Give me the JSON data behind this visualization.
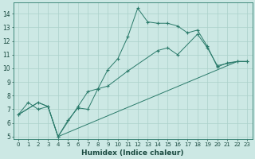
{
  "xlabel": "Humidex (Indice chaleur)",
  "bg_color": "#cce8e4",
  "grid_color": "#aad0ca",
  "line_color": "#2a7a6a",
  "xlim": [
    -0.5,
    23.5
  ],
  "ylim": [
    4.8,
    14.8
  ],
  "xtick_labels": [
    "0",
    "1",
    "2",
    "3",
    "4",
    "5",
    "6",
    "7",
    "8",
    "9",
    "10",
    "11",
    "12",
    "13",
    "14",
    "15",
    "16",
    "17",
    "18",
    "19",
    "20",
    "21",
    "22",
    "23"
  ],
  "xtick_vals": [
    0,
    1,
    2,
    3,
    4,
    5,
    6,
    7,
    8,
    9,
    10,
    11,
    12,
    13,
    14,
    15,
    16,
    17,
    18,
    19,
    20,
    21,
    22,
    23
  ],
  "ytick_vals": [
    5,
    6,
    7,
    8,
    9,
    10,
    11,
    12,
    13,
    14
  ],
  "curve1_x": [
    0,
    1,
    2,
    3,
    4,
    5,
    6,
    7,
    8,
    9,
    10,
    11,
    12,
    13,
    14,
    15,
    16,
    17,
    18,
    19,
    20,
    21,
    22,
    23
  ],
  "curve1_y": [
    6.6,
    7.5,
    7.0,
    7.2,
    5.0,
    6.2,
    7.1,
    7.0,
    8.5,
    9.9,
    10.7,
    12.3,
    14.4,
    13.4,
    13.3,
    13.3,
    13.1,
    12.6,
    12.8,
    11.6,
    10.1,
    10.4,
    10.5,
    10.5
  ],
  "curve2_x": [
    0,
    2,
    3,
    4,
    6,
    7,
    8,
    9,
    11,
    14,
    15,
    16,
    18,
    19,
    20,
    22,
    23
  ],
  "curve2_y": [
    6.6,
    7.5,
    7.2,
    5.0,
    7.2,
    8.3,
    8.5,
    8.7,
    9.8,
    11.3,
    11.5,
    11.0,
    12.5,
    11.5,
    10.2,
    10.5,
    10.5
  ],
  "curve3_x": [
    0,
    2,
    3,
    4,
    22,
    23
  ],
  "curve3_y": [
    6.6,
    7.5,
    7.2,
    5.0,
    10.5,
    10.5
  ]
}
